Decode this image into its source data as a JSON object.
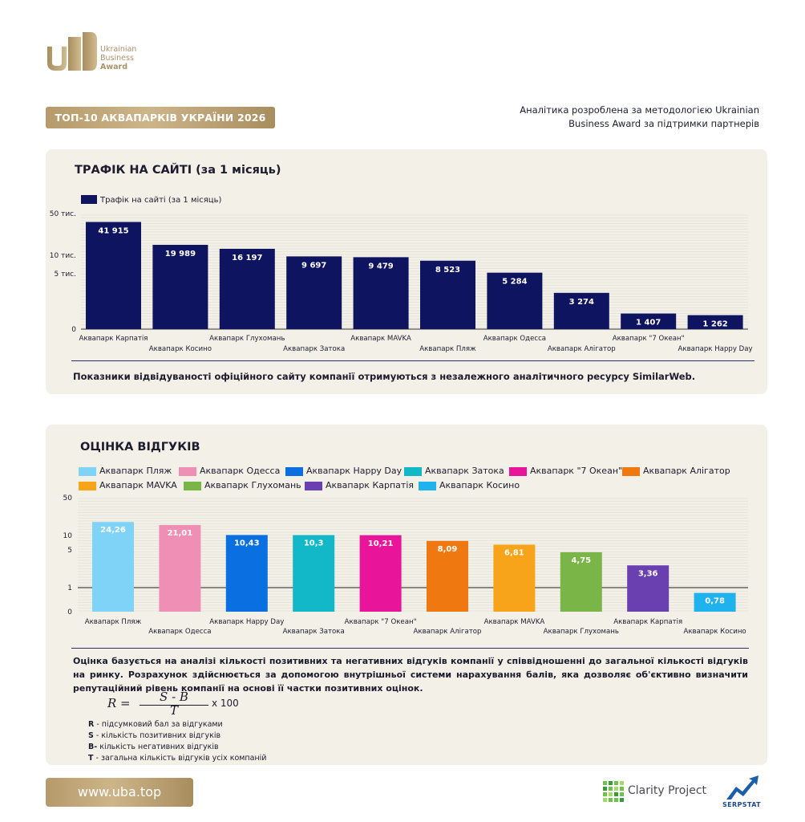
{
  "brand": {
    "logo_line1": "Ukrainian",
    "logo_line2": "Business",
    "logo_line3": "Award",
    "accent_gold": "#b59a6a",
    "navy": "#0f1460"
  },
  "header": {
    "title": "ТОП-10 АКВАПАРКІВ УКРАЇНИ 2026",
    "method_note_line1": "Аналітика розроблена за методологією Ukrainian",
    "method_note_line2": "Business Award за підтримки партнерів"
  },
  "traffic": {
    "title": "ТРАФІК НА САЙТІ (за 1 місяць)",
    "footnote": "Показники відвідуваності офіційного сайту компанії отримуються з незалежного аналітичного ресурсу SimilarWeb."
  },
  "reviews": {
    "title": "ОЦІНКА ВІДГУКІВ",
    "description": "Оцінка базується на аналізі кількості позитивних та негативних відгуків компанії у співвідношенні до загальної кількості відгуків на ринку. Розрахунок здійснюється за допомогою внутрішньої системи нарахування балів, яка дозволяє об'єктивно визначити репутаційний рівень компанії на основі її частки позитивних оцінок.",
    "formula": {
      "lhs": "R =",
      "numerator": "S - B",
      "denominator": "T",
      "multiplier": "x 100"
    },
    "formula_legend": [
      {
        "key": "R",
        "text": " - підсумковий бал за відгуками"
      },
      {
        "key": "S",
        "text": " - кількість позитивних відгуків"
      },
      {
        "key": "B-",
        "text": "  кількість негативних відгуків"
      },
      {
        "key": "T",
        "text": " - загальна кількість відгуків усіх компаній"
      }
    ]
  },
  "footer": {
    "url": "www.uba.top",
    "partner1": "Clarity Project",
    "partner2": "SERPSTAT"
  },
  "chart_data": [
    {
      "type": "bar",
      "title": "",
      "scale": "log-like",
      "y_ticks": [
        "0",
        "5 тис.",
        "10 тис.",
        "50 тис."
      ],
      "y_tick_values": [
        0,
        5000,
        10000,
        50000
      ],
      "ylim": [
        0,
        50000
      ],
      "grid": true,
      "legend": "top-left",
      "series": [
        {
          "name": "Трафік на сайті (за 1 місяць)",
          "color": "#0f1460",
          "values": [
            41915,
            19989,
            16197,
            9697,
            9479,
            8523,
            5284,
            3274,
            1407,
            1262
          ],
          "labels": [
            "41 915",
            "19 989",
            "16 197",
            "9 697",
            "9 479",
            "8 523",
            "5 284",
            "3 274",
            "1 407",
            "1 262"
          ]
        }
      ],
      "categories": [
        "Аквапарк Карпатія",
        "Аквапарк Косино",
        "Аквапарк Глухомань",
        "Аквапарк Затока",
        "Аквапарк MAVKA",
        "Аквапарк Пляж",
        "Аквапарк Одесса",
        "Аквапарк Алігатор",
        "Аквапарк \"7 Океан\"",
        "Аквапарк Happy Day"
      ]
    },
    {
      "type": "bar",
      "title": "",
      "scale": "log-like",
      "y_ticks": [
        "0",
        "1",
        "5",
        "10",
        "50"
      ],
      "y_tick_values": [
        0,
        1,
        5,
        10,
        50
      ],
      "ylim": [
        0,
        50
      ],
      "grid": true,
      "legend": "top",
      "categories": [
        "Аквапарк Пляж",
        "Аквапарк Одесса",
        "Аквапарк Happy Day",
        "Аквапарк Затока",
        "Аквапарк \"7 Океан\"",
        "Аквапарк Алігатор",
        "Аквапарк MAVKA",
        "Аквапарк Глухомань",
        "Аквапарк Карпатія",
        "Аквапарк Косино"
      ],
      "values": [
        24.26,
        21.01,
        10.43,
        10.3,
        10.21,
        8.09,
        6.81,
        4.75,
        3.36,
        0.78
      ],
      "labels": [
        "24,26",
        "21,01",
        "10,43",
        "10,3",
        "10,21",
        "8,09",
        "6,81",
        "4,75",
        "3,36",
        "0,78"
      ],
      "colors": [
        "#7fd3f7",
        "#f08fb5",
        "#0a6fe0",
        "#12b8c8",
        "#e8149a",
        "#f07810",
        "#f7a41a",
        "#7ab548",
        "#6a3fb0",
        "#1fb2ec"
      ],
      "legend_order": [
        "Аквапарк Пляж",
        "Аквапарк Одесса",
        "Аквапарк Happy Day",
        "Аквапарк Затока",
        "Аквапарк \"7 Океан\"",
        "Аквапарк Алігатор",
        "Аквапарк MAVKA",
        "Аквапарк Глухомань",
        "Аквапарк Карпатія",
        "Аквапарк Косино"
      ],
      "legend_colors": [
        "#7fd3f7",
        "#f08fb5",
        "#0a6fe0",
        "#12b8c8",
        "#e8149a",
        "#f07810",
        "#f7a41a",
        "#7ab548",
        "#6a3fb0",
        "#1fb2ec"
      ]
    }
  ]
}
